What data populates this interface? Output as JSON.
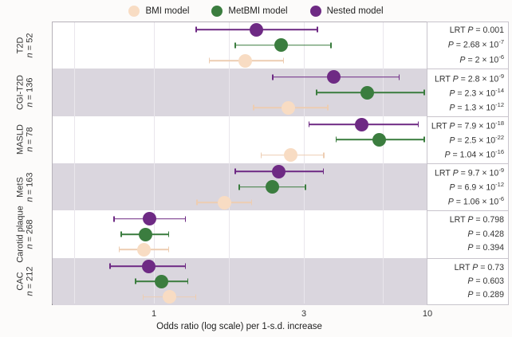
{
  "legend": {
    "items": [
      {
        "label": "BMI model",
        "color": "#f8dcc3"
      },
      {
        "label": "MetBMI model",
        "color": "#3b7d3f"
      },
      {
        "label": "Nested model",
        "color": "#6e2a84"
      }
    ]
  },
  "axis": {
    "title": "Odds ratio (log scale) per 1-s.d. increase",
    "tick_labels": [
      "1",
      "3",
      "10"
    ]
  },
  "colors": {
    "bmi_fill": "#f8dcc3",
    "bmi_line": "#edcdb2",
    "metbmi": "#3b7d3f",
    "nested": "#6e2a84",
    "band": "#dad6de",
    "frame_border": "#b6b2ba",
    "axis_line": "#6d6d6d",
    "gridline": "#e9e6ec"
  },
  "chart_data": {
    "type": "scatter",
    "subtype": "forest-plot",
    "x_scale": "log",
    "x_ticks": [
      1,
      3,
      10
    ],
    "xlabel": "Odds ratio (log scale) per 1-s.d. increase",
    "series_order": [
      "Nested model",
      "MetBMI model",
      "BMI model"
    ],
    "groups": [
      {
        "label": "T2D",
        "n_label": "n = 52",
        "shaded": false,
        "pvalues": [
          "LRT P = 0.001",
          "P = 2.68 × 10^-7",
          "P = 2 × 10^-6"
        ],
        "points": [
          {
            "model": "Nested model",
            "or": 2.13,
            "ci_lo": 1.36,
            "ci_hi": 3.37
          },
          {
            "model": "MetBMI model",
            "or": 2.56,
            "ci_lo": 1.82,
            "ci_hi": 3.73
          },
          {
            "model": "BMI model",
            "or": 1.97,
            "ci_lo": 1.5,
            "ci_hi": 2.62
          }
        ]
      },
      {
        "label": "CGI-T2D",
        "n_label": "n = 136",
        "shaded": true,
        "pvalues": [
          "LRT P = 2.8 × 10^-9",
          "P = 2.3 × 10^-14",
          "P = 1.3 × 10^-12"
        ],
        "points": [
          {
            "model": "Nested model",
            "or": 3.79,
            "ci_lo": 2.4,
            "ci_hi": 6.18
          },
          {
            "model": "MetBMI model",
            "or": 4.86,
            "ci_lo": 3.32,
            "ci_hi": 7.5
          },
          {
            "model": "BMI model",
            "or": 2.71,
            "ci_lo": 2.08,
            "ci_hi": 3.64
          }
        ]
      },
      {
        "label": "MASLD",
        "n_label": "n = 78",
        "shaded": false,
        "pvalues": [
          "LRT P = 7.9 × 10^-18",
          "P = 2.5 × 10^-22",
          "P = 1.04 × 10^-16"
        ],
        "points": [
          {
            "model": "Nested model",
            "or": 4.66,
            "ci_lo": 3.14,
            "ci_hi": 7.11
          },
          {
            "model": "MetBMI model",
            "or": 5.3,
            "ci_lo": 3.84,
            "ci_hi": 7.45
          },
          {
            "model": "BMI model",
            "or": 2.75,
            "ci_lo": 2.2,
            "ci_hi": 3.54
          }
        ]
      },
      {
        "label": "MetS",
        "n_label": "n = 163",
        "shaded": true,
        "pvalues": [
          "LRT P = 9.7 × 10^-9",
          "P = 6.9 × 10^-12",
          "P = 1.06 × 10^-6"
        ],
        "points": [
          {
            "model": "Nested model",
            "or": 2.52,
            "ci_lo": 1.82,
            "ci_hi": 3.52
          },
          {
            "model": "MetBMI model",
            "or": 2.4,
            "ci_lo": 1.87,
            "ci_hi": 3.09
          },
          {
            "model": "BMI model",
            "or": 1.69,
            "ci_lo": 1.37,
            "ci_hi": 2.07
          }
        ]
      },
      {
        "label": "Carotid plaque",
        "n_label": "n = 268",
        "shaded": false,
        "pvalues": [
          "LRT P = 0.798",
          "P = 0.428",
          "P = 0.394"
        ],
        "points": [
          {
            "model": "Nested model",
            "or": 0.97,
            "ci_lo": 0.74,
            "ci_hi": 1.27
          },
          {
            "model": "MetBMI model",
            "or": 0.94,
            "ci_lo": 0.78,
            "ci_hi": 1.12
          },
          {
            "model": "BMI model",
            "or": 0.93,
            "ci_lo": 0.77,
            "ci_hi": 1.12
          }
        ]
      },
      {
        "label": "CAC",
        "n_label": "n = 212",
        "shaded": true,
        "pvalues": [
          "LRT P = 0.73",
          "P = 0.603",
          "P = 0.289"
        ],
        "points": [
          {
            "model": "Nested model",
            "or": 0.96,
            "ci_lo": 0.72,
            "ci_hi": 1.27
          },
          {
            "model": "MetBMI model",
            "or": 1.06,
            "ci_lo": 0.87,
            "ci_hi": 1.29
          },
          {
            "model": "BMI model",
            "or": 1.12,
            "ci_lo": 0.92,
            "ci_hi": 1.37
          }
        ]
      }
    ]
  }
}
